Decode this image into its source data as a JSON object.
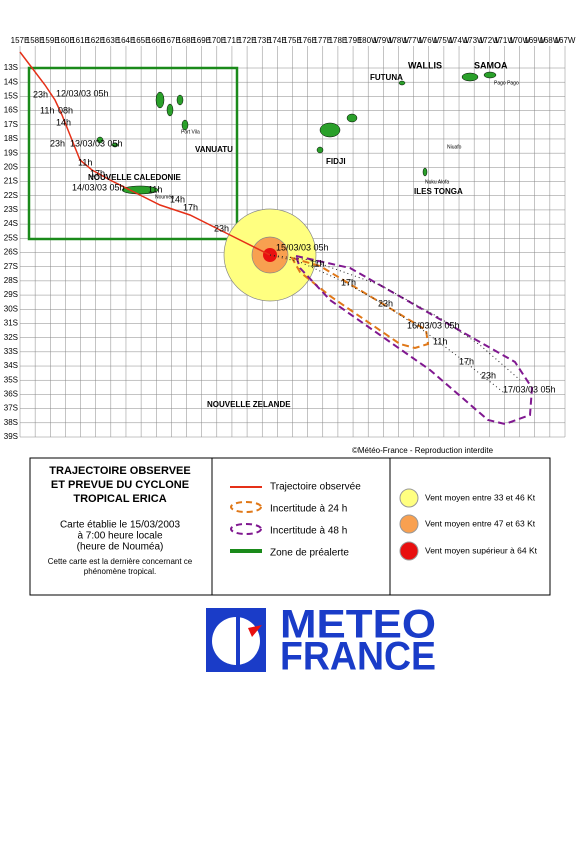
{
  "map": {
    "lon_labels": [
      "157E",
      "158E",
      "159E",
      "160E",
      "161E",
      "162E",
      "163E",
      "164E",
      "165E",
      "166E",
      "167E",
      "168E",
      "169E",
      "170E",
      "171E",
      "172E",
      "173E",
      "174E",
      "175E",
      "176E",
      "177E",
      "178E",
      "179E",
      "180W",
      "179W",
      "178W",
      "177W",
      "176W",
      "175W",
      "174W",
      "173W",
      "172W",
      "171W",
      "170W",
      "169W",
      "168W",
      "167W"
    ],
    "lat_labels": [
      "13S",
      "14S",
      "15S",
      "16S",
      "17S",
      "18S",
      "19S",
      "20S",
      "21S",
      "22S",
      "23S",
      "24S",
      "25S",
      "26S",
      "27S",
      "28S",
      "29S",
      "30S",
      "31S",
      "32S",
      "33S",
      "34S",
      "35S",
      "36S",
      "37S",
      "38S",
      "39S"
    ],
    "places": [
      "WALLIS",
      "FUTUNA",
      "SAMOA",
      "Pago Pago",
      "Port Vila",
      "VANUATU",
      "FIDJI",
      "Niuafo",
      "Nuku Alofa",
      "ILES TONGA",
      "NOUVELLE CALEDONIE",
      "Nouméa",
      "NOUVELLE ZELANDE"
    ],
    "track_labels": [
      "23h",
      "12/03/03 05h",
      "11h",
      "08h",
      "14h",
      "23h",
      "13/03/03 05h",
      "11h",
      "17h",
      "14/03/03 05h",
      "11h",
      "14h",
      "17h",
      "23h",
      "15/03/03 05h",
      "11h",
      "17h",
      "23h",
      "16/03/03 05h",
      "11h",
      "17h",
      "23h",
      "17/03/03 05h"
    ],
    "copyright": "©Météo-France - Reproduction interdite"
  },
  "legend": {
    "title": [
      "TRAJECTOIRE OBSERVEE",
      "ET PREVUE DU CYCLONE",
      "TROPICAL ERICA"
    ],
    "note": [
      "Carte établie le 15/03/2003",
      "à 7:00 heure locale",
      "(heure de Nouméa)"
    ],
    "last": [
      "Cette carte est la dernière concernant ce",
      "phénomène tropical."
    ],
    "items": [
      "Trajectoire observée",
      "Incertitude à 24 h",
      "Incertitude à 48 h",
      "Zone de préalerte"
    ],
    "wind": [
      "Vent moyen entre 33 et 46 Kt",
      "Vent moyen entre 47 et 63 Kt",
      "Vent moyen supérieur à 64 Kt"
    ]
  },
  "logo": {
    "line1": "METEO",
    "line2": "FRANCE"
  }
}
